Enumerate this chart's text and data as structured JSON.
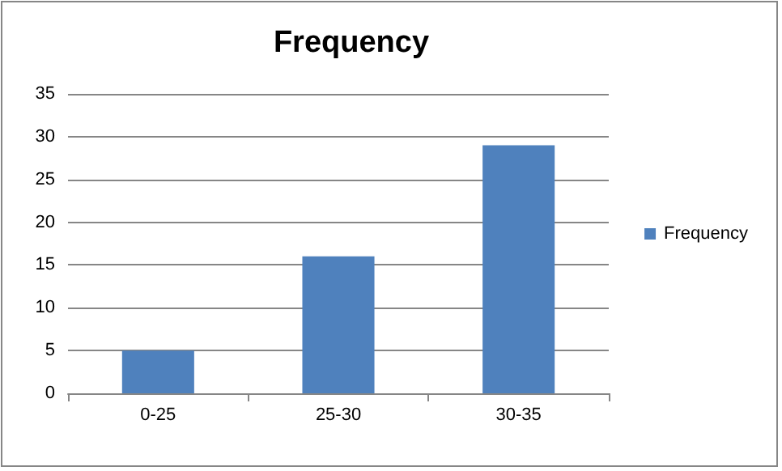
{
  "chart_data": {
    "type": "bar",
    "title": "Frequency",
    "categories": [
      "0-25",
      "25-30",
      "30-35"
    ],
    "series": [
      {
        "name": "Frequency",
        "color": "#4f81bd",
        "values": [
          5,
          16,
          29
        ]
      }
    ],
    "ylim": [
      0,
      35
    ],
    "yticks": [
      0,
      5,
      10,
      15,
      20,
      25,
      30,
      35
    ],
    "grid": "y",
    "legend": "right"
  }
}
